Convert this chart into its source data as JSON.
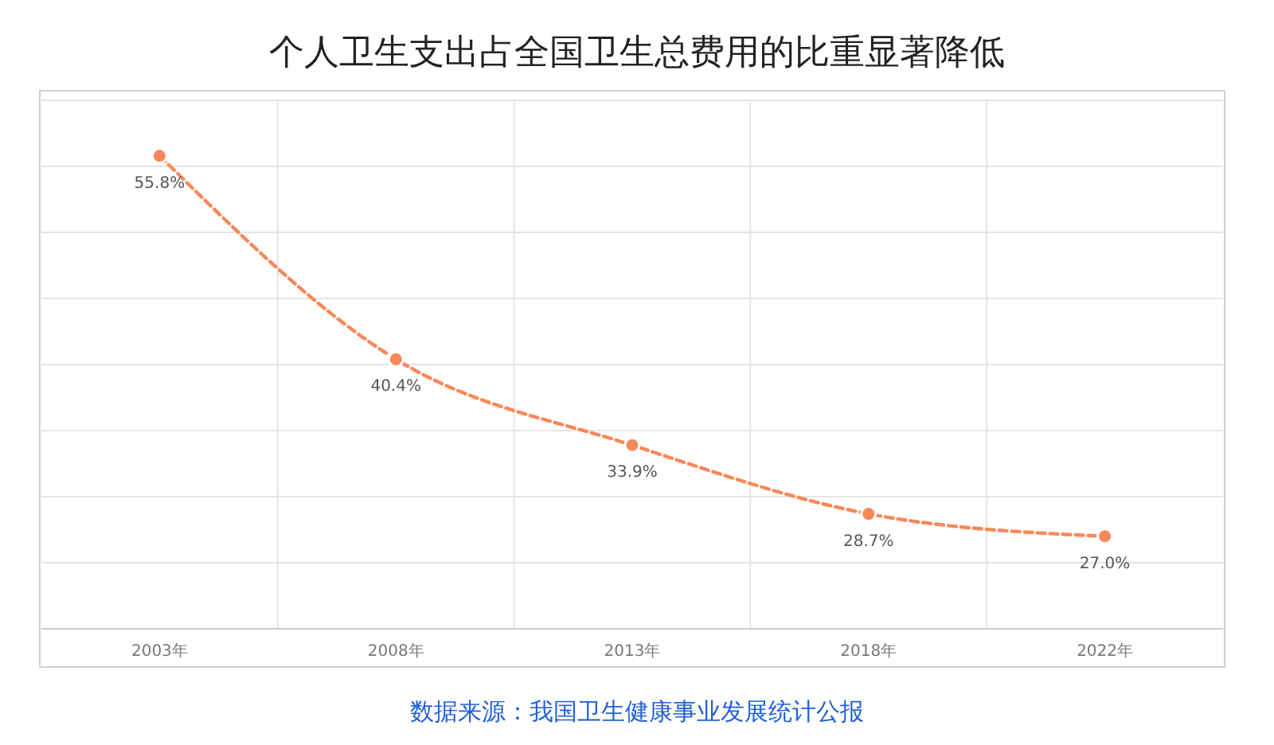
{
  "chart_data": {
    "type": "line",
    "title": "个人卫生支出占全国卫生总费用的比重显著降低",
    "categories": [
      "2003年",
      "2008年",
      "2013年",
      "2018年",
      "2022年"
    ],
    "series": [
      {
        "color": "#f7885a",
        "values": [
          55.8,
          40.4,
          33.9,
          28.7,
          27.0
        ],
        "value_labels": [
          "55.8%",
          "40.4%",
          "33.9%",
          "28.7%",
          "27.0%"
        ]
      }
    ],
    "ylim": [
      20,
      60
    ],
    "yticks": [
      {
        "value": 20,
        "label": null
      },
      {
        "value": 25,
        "label": null
      },
      {
        "value": 30,
        "label": null
      },
      {
        "value": 35,
        "label": null
      },
      {
        "value": 40,
        "label": null
      },
      {
        "value": 45,
        "label": null
      },
      {
        "value": 50,
        "label": null
      },
      {
        "value": 55,
        "label": null
      },
      {
        "value": 60,
        "label": null
      }
    ],
    "tick_labels": "x",
    "grid": true,
    "marker": "circle",
    "line_style": "dashed",
    "annotations": [
      "数据来源：我国卫生健康事业发展统计公报"
    ]
  }
}
